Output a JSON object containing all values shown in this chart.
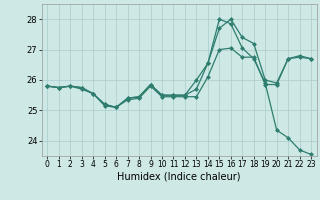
{
  "xlabel": "Humidex (Indice chaleur)",
  "bg_color": "#cde8e5",
  "grid_color": "#aacccc",
  "line_color": "#2e7d6e",
  "markersize": 2.5,
  "linewidth": 0.9,
  "xlim": [
    -0.5,
    23.5
  ],
  "ylim": [
    23.5,
    28.5
  ],
  "yticks": [
    24,
    25,
    26,
    27,
    28
  ],
  "xticks": [
    0,
    1,
    2,
    3,
    4,
    5,
    6,
    7,
    8,
    9,
    10,
    11,
    12,
    13,
    14,
    15,
    16,
    17,
    18,
    19,
    20,
    21,
    22,
    23
  ],
  "line1_x": [
    0,
    1,
    2,
    3,
    4,
    5,
    6,
    7,
    8,
    9,
    10,
    11,
    12,
    13,
    14,
    15,
    16,
    17,
    18,
    19,
    20,
    21,
    22,
    23
  ],
  "line1_y": [
    25.8,
    25.75,
    25.8,
    25.75,
    25.55,
    25.2,
    25.1,
    25.4,
    25.45,
    25.85,
    25.5,
    25.5,
    25.5,
    26.0,
    26.55,
    27.7,
    28.0,
    27.4,
    27.2,
    26.0,
    25.9,
    26.7,
    26.8,
    26.7
  ],
  "line2_x": [
    0,
    1,
    2,
    3,
    4,
    5,
    6,
    7,
    8,
    9,
    10,
    11,
    12,
    13,
    14,
    15,
    16,
    17,
    18,
    19,
    20,
    21,
    22,
    23
  ],
  "line2_y": [
    25.8,
    25.75,
    25.8,
    25.75,
    25.55,
    25.2,
    25.1,
    25.4,
    25.45,
    25.85,
    25.5,
    25.5,
    25.5,
    25.7,
    26.55,
    28.0,
    27.85,
    27.05,
    26.7,
    25.9,
    24.35,
    24.1,
    23.7,
    23.55
  ],
  "line3_x": [
    0,
    1,
    2,
    3,
    4,
    5,
    6,
    7,
    8,
    9,
    10,
    11,
    12,
    13,
    14,
    15,
    16,
    17,
    18,
    19,
    20,
    21,
    22,
    23
  ],
  "line3_y": [
    25.8,
    25.75,
    25.8,
    25.7,
    25.55,
    25.15,
    25.1,
    25.35,
    25.4,
    25.8,
    25.45,
    25.45,
    25.45,
    25.45,
    26.1,
    27.0,
    27.05,
    26.75,
    26.75,
    25.85,
    25.85,
    26.7,
    26.75,
    26.7
  ]
}
